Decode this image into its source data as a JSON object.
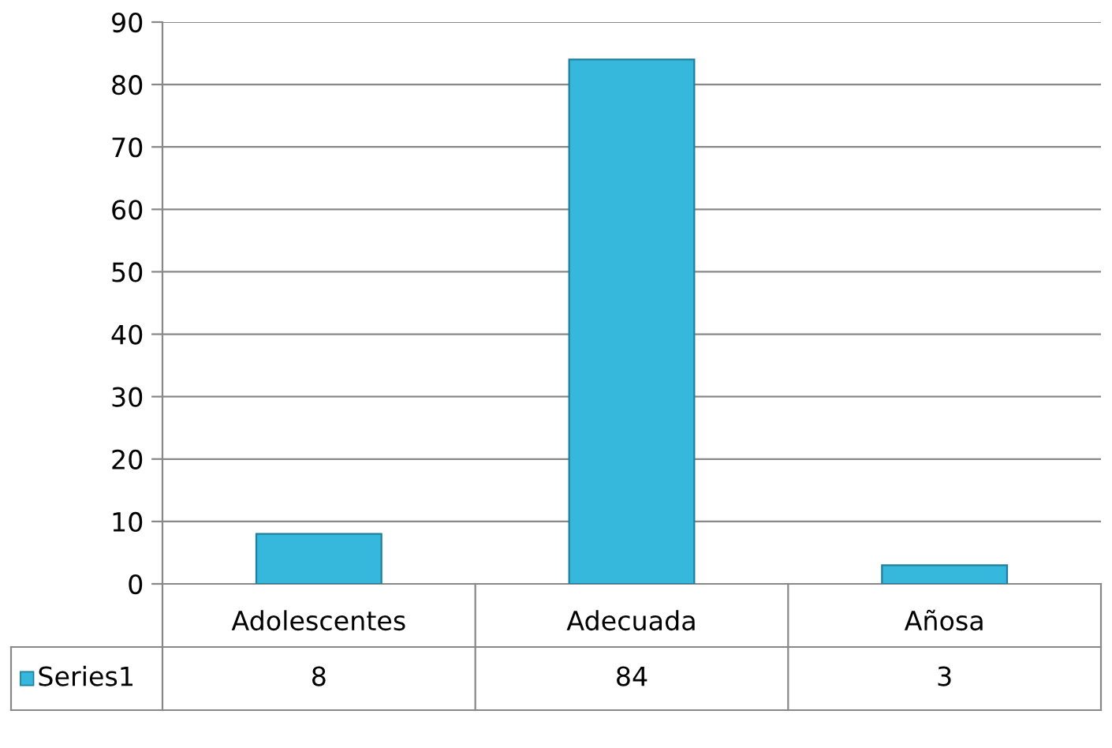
{
  "chart_data": {
    "type": "bar",
    "categories": [
      "Adolescentes",
      "Adecuada",
      "Añosa"
    ],
    "series": [
      {
        "name": "Series1",
        "color": "#35b8dc",
        "values": [
          8,
          84,
          3
        ]
      }
    ],
    "ylim": [
      0,
      90
    ],
    "yticks": [
      0,
      10,
      20,
      30,
      40,
      50,
      60,
      70,
      80,
      90
    ],
    "grid": "y",
    "legend": "bottom left",
    "data_labels": true
  }
}
